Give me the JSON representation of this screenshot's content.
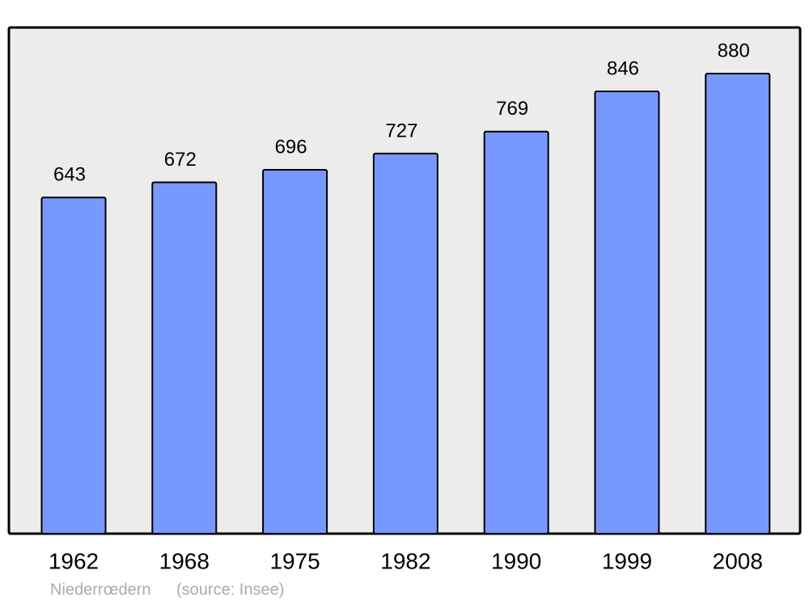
{
  "chart_data": {
    "type": "bar",
    "categories": [
      "1962",
      "1968",
      "1975",
      "1982",
      "1990",
      "1999",
      "2008"
    ],
    "values": [
      643,
      672,
      696,
      727,
      769,
      846,
      880
    ],
    "color": "#7799ff",
    "place": "Niederrœdern",
    "source": "(source: Insee)"
  }
}
